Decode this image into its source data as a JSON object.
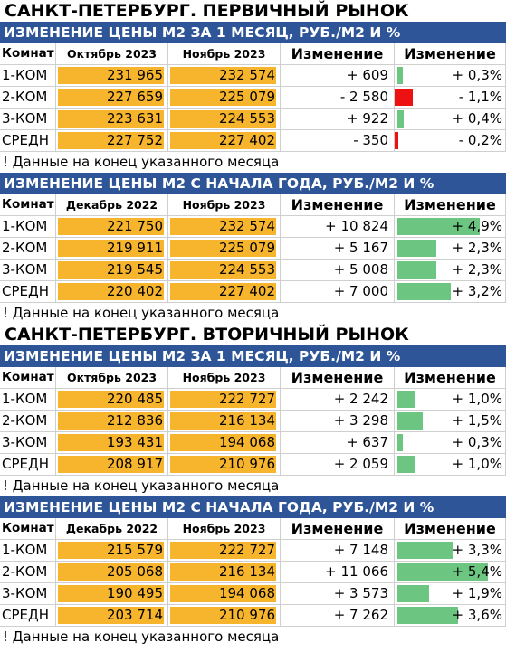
{
  "colors": {
    "header_bg": "#2e5597",
    "bar_value": "#f7b42d",
    "bar_pos": "#6cc581",
    "bar_neg": "#ee1111"
  },
  "sections": [
    {
      "title": "САНКТ-ПЕТЕРБУРГ. ПЕРВИЧНЫЙ РЫНОК",
      "tables": [
        {
          "subtitle": "ИЗМЕНЕНИЕ ЦЕНЫ М2 ЗА 1 МЕСЯЦ, РУБ./М2 И %",
          "headers": [
            "Комнат",
            "Октябрь 2023",
            "Ноябрь 2023",
            "Изменение",
            "Изменение"
          ],
          "rows": [
            {
              "room": "1-КОМ",
              "v1": "231 965",
              "v2": "232 574",
              "diff": "+ 609",
              "pct": "+ 0,3%",
              "pct_value": 0.3
            },
            {
              "room": "2-КОМ",
              "v1": "227 659",
              "v2": "225 079",
              "diff": "- 2 580",
              "pct": "- 1,1%",
              "pct_value": -1.1
            },
            {
              "room": "3-КОМ",
              "v1": "223 631",
              "v2": "224 553",
              "diff": "+ 922",
              "pct": "+ 0,4%",
              "pct_value": 0.4
            },
            {
              "room": "СРЕДН",
              "v1": "227 752",
              "v2": "227 402",
              "diff": "- 350",
              "pct": "- 0,2%",
              "pct_value": -0.2
            }
          ],
          "note": "! Данные на конец указанного месяца"
        },
        {
          "subtitle": "ИЗМЕНЕНИЕ ЦЕНЫ М2 С НАЧАЛА ГОДА, РУБ./М2 И %",
          "headers": [
            "Комнат",
            "Декабрь 2022",
            "Ноябрь 2023",
            "Изменение",
            "Изменение"
          ],
          "rows": [
            {
              "room": "1-КОМ",
              "v1": "221 750",
              "v2": "232 574",
              "diff": "+ 10 824",
              "pct": "+ 4,9%",
              "pct_value": 4.9
            },
            {
              "room": "2-КОМ",
              "v1": "219 911",
              "v2": "225 079",
              "diff": "+ 5 167",
              "pct": "+ 2,3%",
              "pct_value": 2.3
            },
            {
              "room": "3-КОМ",
              "v1": "219 545",
              "v2": "224 553",
              "diff": "+ 5 008",
              "pct": "+ 2,3%",
              "pct_value": 2.3
            },
            {
              "room": "СРЕДН",
              "v1": "220 402",
              "v2": "227 402",
              "diff": "+ 7 000",
              "pct": "+ 3,2%",
              "pct_value": 3.2
            }
          ],
          "note": "! Данные на конец указанного месяца"
        }
      ]
    },
    {
      "title": "САНКТ-ПЕТЕРБУРГ. ВТОРИЧНЫЙ РЫНОК",
      "tables": [
        {
          "subtitle": "ИЗМЕНЕНИЕ ЦЕНЫ М2 ЗА 1 МЕСЯЦ, РУБ./М2 И %",
          "headers": [
            "Комнат",
            "Октябрь 2023",
            "Ноябрь 2023",
            "Изменение",
            "Изменение"
          ],
          "rows": [
            {
              "room": "1-КОМ",
              "v1": "220 485",
              "v2": "222 727",
              "diff": "+ 2 242",
              "pct": "+ 1,0%",
              "pct_value": 1.0
            },
            {
              "room": "2-КОМ",
              "v1": "212 836",
              "v2": "216 134",
              "diff": "+ 3 298",
              "pct": "+ 1,5%",
              "pct_value": 1.5
            },
            {
              "room": "3-КОМ",
              "v1": "193 431",
              "v2": "194 068",
              "diff": "+ 637",
              "pct": "+ 0,3%",
              "pct_value": 0.3
            },
            {
              "room": "СРЕДН",
              "v1": "208 917",
              "v2": "210 976",
              "diff": "+ 2 059",
              "pct": "+ 1,0%",
              "pct_value": 1.0
            }
          ],
          "note": "! Данные на конец указанного месяца"
        },
        {
          "subtitle": "ИЗМЕНЕНИЕ ЦЕНЫ М2 С НАЧАЛА ГОДА, РУБ./М2 И %",
          "headers": [
            "Комнат",
            "Декабрь 2022",
            "Ноябрь 2023",
            "Изменение",
            "Изменение"
          ],
          "rows": [
            {
              "room": "1-КОМ",
              "v1": "215 579",
              "v2": "222 727",
              "diff": "+ 7 148",
              "pct": "+ 3,3%",
              "pct_value": 3.3
            },
            {
              "room": "2-КОМ",
              "v1": "205 068",
              "v2": "216 134",
              "diff": "+ 11 066",
              "pct": "+ 5,4%",
              "pct_value": 5.4
            },
            {
              "room": "3-КОМ",
              "v1": "190 495",
              "v2": "194 068",
              "diff": "+ 3 573",
              "pct": "+ 1,9%",
              "pct_value": 1.9
            },
            {
              "room": "СРЕДН",
              "v1": "203 714",
              "v2": "210 976",
              "diff": "+ 7 262",
              "pct": "+ 3,6%",
              "pct_value": 3.6
            }
          ],
          "note": "! Данные на конец указанного месяца"
        }
      ]
    }
  ]
}
